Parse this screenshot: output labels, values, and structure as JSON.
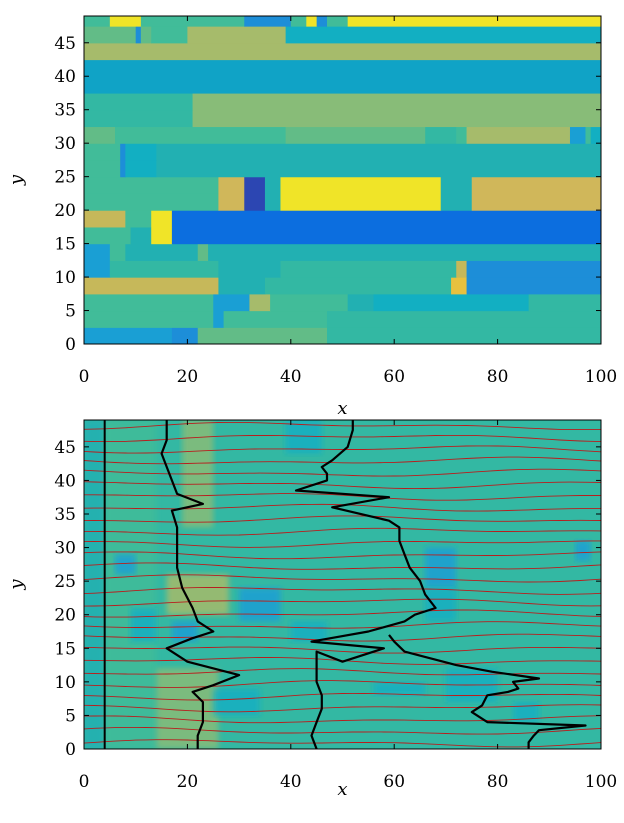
{
  "colors": {
    "A": "#e7c13f",
    "B": "#f0e428",
    "C": "#2c46b2",
    "D": "#0c6edf",
    "E": "#1d8ed8",
    "F": "#1a9fd4",
    "G": "#10a3c6",
    "H": "#12afc2",
    "I": "#22b0b2",
    "J": "#33b8a3",
    "K": "#41bc99",
    "L": "#62bc87",
    "M": "#88bc78",
    "N": "#a6bb6b",
    "O": "#c6b85a",
    "P": "#d0b75a",
    "line_dark": "#000000",
    "line_red": "#b81e1e"
  },
  "chart_data": [
    {
      "type": "heatmap",
      "x_ticks": [
        "0",
        "20",
        "40",
        "60",
        "80",
        "100"
      ],
      "y_ticks": [
        "0",
        "5",
        "10",
        "15",
        "20",
        "25",
        "30",
        "35",
        "40",
        "45"
      ],
      "xlabel": "x",
      "ylabel": "y",
      "xlim": [
        0,
        100
      ],
      "ylim": [
        0,
        49
      ],
      "rows": [
        {
          "y": [
            0,
            2.5
          ],
          "cells": [
            [
              0,
              17,
              "F"
            ],
            [
              17,
              22,
              "E"
            ],
            [
              22,
              47,
              "L"
            ],
            [
              47,
              100,
              "J"
            ]
          ]
        },
        {
          "y": [
            2.5,
            5
          ],
          "cells": [
            [
              0,
              25,
              "K"
            ],
            [
              25,
              27,
              "F"
            ],
            [
              27,
              47,
              "K"
            ],
            [
              47,
              100,
              "J"
            ]
          ]
        },
        {
          "y": [
            5,
            7.5
          ],
          "cells": [
            [
              0,
              25,
              "K"
            ],
            [
              25,
              32,
              "F"
            ],
            [
              32,
              36,
              "N"
            ],
            [
              36,
              51,
              "K"
            ],
            [
              51,
              56,
              "I"
            ],
            [
              56,
              86,
              "H"
            ],
            [
              86,
              100,
              "J"
            ]
          ]
        },
        {
          "y": [
            7.5,
            10
          ],
          "cells": [
            [
              0,
              26,
              "O"
            ],
            [
              26,
              35,
              "I"
            ],
            [
              35,
              71,
              "J"
            ],
            [
              71,
              74,
              "A"
            ],
            [
              74,
              100,
              "E"
            ]
          ]
        },
        {
          "y": [
            10,
            12.5
          ],
          "cells": [
            [
              0,
              5,
              "F"
            ],
            [
              5,
              26,
              "J"
            ],
            [
              26,
              38,
              "I"
            ],
            [
              38,
              72,
              "J"
            ],
            [
              72,
              74,
              "O"
            ],
            [
              74,
              100,
              "E"
            ]
          ]
        },
        {
          "y": [
            12.5,
            15
          ],
          "cells": [
            [
              0,
              5,
              "F"
            ],
            [
              5,
              8,
              "K"
            ],
            [
              8,
              22,
              "I"
            ],
            [
              22,
              24,
              "L"
            ],
            [
              24,
              100,
              "I"
            ]
          ]
        },
        {
          "y": [
            15,
            17.5
          ],
          "cells": [
            [
              0,
              9,
              "K"
            ],
            [
              9,
              13,
              "I"
            ],
            [
              13,
              17,
              "B"
            ],
            [
              17,
              100,
              "D"
            ]
          ]
        },
        {
          "y": [
            17.5,
            20
          ],
          "cells": [
            [
              0,
              8,
              "O"
            ],
            [
              8,
              13,
              "K"
            ],
            [
              13,
              17,
              "B"
            ],
            [
              17,
              100,
              "D"
            ]
          ]
        },
        {
          "y": [
            20,
            22.5
          ],
          "cells": [
            [
              0,
              26,
              "K"
            ],
            [
              26,
              31,
              "P"
            ],
            [
              31,
              35,
              "C"
            ],
            [
              35,
              38,
              "I"
            ],
            [
              38,
              69,
              "B"
            ],
            [
              69,
              75,
              "I"
            ],
            [
              75,
              100,
              "P"
            ]
          ]
        },
        {
          "y": [
            22.5,
            25
          ],
          "cells": [
            [
              0,
              26,
              "K"
            ],
            [
              26,
              31,
              "P"
            ],
            [
              31,
              35,
              "C"
            ],
            [
              35,
              38,
              "I"
            ],
            [
              38,
              69,
              "B"
            ],
            [
              69,
              75,
              "I"
            ],
            [
              75,
              100,
              "P"
            ]
          ]
        },
        {
          "y": [
            25,
            27.5
          ],
          "cells": [
            [
              0,
              7,
              "K"
            ],
            [
              7,
              8,
              "E"
            ],
            [
              8,
              14,
              "H"
            ],
            [
              14,
              100,
              "I"
            ]
          ]
        },
        {
          "y": [
            27.5,
            30
          ],
          "cells": [
            [
              0,
              7,
              "K"
            ],
            [
              7,
              8,
              "E"
            ],
            [
              8,
              14,
              "H"
            ],
            [
              14,
              100,
              "I"
            ]
          ]
        },
        {
          "y": [
            30,
            32.5
          ],
          "cells": [
            [
              0,
              6,
              "L"
            ],
            [
              6,
              39,
              "K"
            ],
            [
              39,
              66,
              "L"
            ],
            [
              66,
              72,
              "J"
            ],
            [
              72,
              74,
              "K"
            ],
            [
              74,
              94,
              "N"
            ],
            [
              94,
              97,
              "F"
            ],
            [
              97,
              98,
              "K"
            ],
            [
              98,
              100,
              "H"
            ]
          ]
        },
        {
          "y": [
            32.5,
            35
          ],
          "cells": [
            [
              0,
              21,
              "J"
            ],
            [
              21,
              100,
              "M"
            ]
          ]
        },
        {
          "y": [
            35,
            37.5
          ],
          "cells": [
            [
              0,
              21,
              "J"
            ],
            [
              21,
              100,
              "M"
            ]
          ]
        },
        {
          "y": [
            37.5,
            40
          ],
          "cells": [
            [
              0,
              100,
              "G"
            ]
          ]
        },
        {
          "y": [
            40,
            42.5
          ],
          "cells": [
            [
              0,
              100,
              "G"
            ]
          ]
        },
        {
          "y": [
            42.5,
            45
          ],
          "cells": [
            [
              0,
              100,
              "N"
            ]
          ]
        },
        {
          "y": [
            45,
            47.5
          ],
          "cells": [
            [
              0,
              10,
              "L"
            ],
            [
              10,
              11,
              "E"
            ],
            [
              11,
              13,
              "L"
            ],
            [
              13,
              20,
              "K"
            ],
            [
              20,
              39,
              "N"
            ],
            [
              39,
              100,
              "H"
            ]
          ]
        },
        {
          "y": [
            47.5,
            49
          ],
          "cells": [
            [
              0,
              5,
              "K"
            ],
            [
              5,
              11,
              "B"
            ],
            [
              11,
              31,
              "K"
            ],
            [
              31,
              40,
              "E"
            ],
            [
              40,
              43,
              "K"
            ],
            [
              43,
              45,
              "B"
            ],
            [
              45,
              47,
              "E"
            ],
            [
              47,
              51,
              "K"
            ],
            [
              51,
              100,
              "B"
            ]
          ]
        }
      ]
    },
    {
      "type": "line",
      "x_ticks": [
        "0",
        "20",
        "40",
        "60",
        "80",
        "100"
      ],
      "y_ticks": [
        "0",
        "5",
        "10",
        "15",
        "20",
        "25",
        "30",
        "35",
        "40",
        "45"
      ],
      "xlabel": "x",
      "ylabel": "y",
      "xlim": [
        0,
        100
      ],
      "ylim": [
        0,
        49
      ],
      "background_base": "J",
      "background_patches": [
        [
          0,
          4,
          0,
          49,
          "I"
        ],
        [
          4,
          14,
          0,
          49,
          "K"
        ],
        [
          14,
          26,
          0,
          12,
          "M"
        ],
        [
          16,
          28,
          20,
          26,
          "N"
        ],
        [
          9,
          14,
          16,
          21,
          "H"
        ],
        [
          17,
          22,
          16,
          19,
          "F"
        ],
        [
          25,
          34,
          5,
          9,
          "H"
        ],
        [
          30,
          38,
          19,
          24,
          "F"
        ],
        [
          40,
          47,
          16,
          19,
          "H"
        ],
        [
          56,
          66,
          8,
          10,
          "H"
        ],
        [
          70,
          80,
          7,
          12,
          "H"
        ],
        [
          66,
          72,
          24,
          30,
          "F"
        ],
        [
          66,
          72,
          19,
          24,
          "H"
        ],
        [
          83,
          88,
          4,
          7,
          "H"
        ],
        [
          95,
          98,
          28,
          31,
          "F"
        ],
        [
          39,
          46,
          44,
          49,
          "H"
        ],
        [
          6,
          10,
          26,
          29,
          "F"
        ],
        [
          19,
          25,
          33,
          49,
          "M"
        ]
      ],
      "vertical_line_x": 4,
      "series": [
        {
          "points": [
            [
              22,
              0
            ],
            [
              22,
              2
            ],
            [
              23,
              4
            ],
            [
              23,
              7
            ],
            [
              21,
              8.5
            ],
            [
              25,
              9.5
            ],
            [
              30,
              11
            ],
            [
              20,
              13
            ],
            [
              16,
              15
            ],
            [
              21,
              16.5
            ],
            [
              25,
              17.5
            ],
            [
              22,
              19
            ],
            [
              21,
              21
            ],
            [
              19,
              24
            ],
            [
              18,
              27
            ],
            [
              18,
              30
            ],
            [
              18,
              33
            ],
            [
              17,
              35.5
            ],
            [
              23,
              36.5
            ],
            [
              18,
              38
            ],
            [
              15,
              44
            ],
            [
              16,
              46
            ],
            [
              16,
              49
            ]
          ]
        },
        {
          "points": [
            [
              45,
              0
            ],
            [
              44,
              2
            ],
            [
              45,
              4
            ],
            [
              46,
              6
            ],
            [
              46,
              8
            ],
            [
              45,
              10
            ],
            [
              45,
              12
            ],
            [
              45,
              14.5
            ],
            [
              50,
              13
            ],
            [
              58,
              15
            ],
            [
              44,
              16
            ],
            [
              55,
              17.5
            ],
            [
              62,
              19
            ],
            [
              64,
              20
            ],
            [
              68,
              21
            ],
            [
              66,
              23
            ],
            [
              65,
              25
            ],
            [
              63,
              27
            ],
            [
              62,
              29
            ],
            [
              61,
              31
            ],
            [
              61,
              33
            ],
            [
              59,
              34
            ],
            [
              48,
              36
            ],
            [
              59,
              37.5
            ],
            [
              41,
              38.5
            ],
            [
              47,
              40
            ],
            [
              47,
              41
            ],
            [
              46,
              42
            ],
            [
              48,
              43
            ],
            [
              51,
              45
            ],
            [
              52,
              47.5
            ],
            [
              52,
              49
            ]
          ]
        },
        {
          "points": [
            [
              86,
              0
            ],
            [
              86,
              1
            ],
            [
              87,
              2
            ],
            [
              88,
              2.8
            ],
            [
              97,
              3.5
            ],
            [
              78,
              4
            ],
            [
              75,
              5.5
            ],
            [
              77,
              6.5
            ],
            [
              78,
              8
            ],
            [
              82,
              8.5
            ],
            [
              84,
              9
            ],
            [
              83,
              10
            ],
            [
              88,
              10.5
            ],
            [
              79,
              11.5
            ],
            [
              72,
              12.5
            ],
            [
              62,
              14.5
            ],
            [
              60,
              16
            ],
            [
              59,
              17
            ]
          ]
        }
      ],
      "streamline_count": 28
    }
  ]
}
